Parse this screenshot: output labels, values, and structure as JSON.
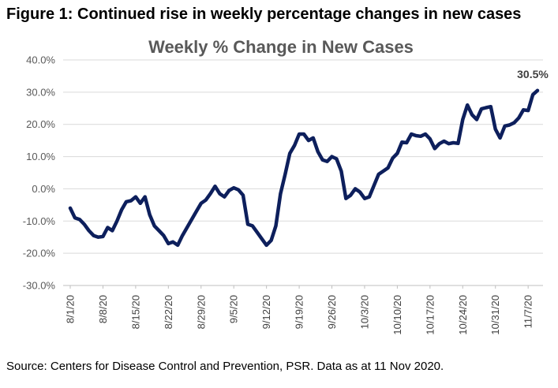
{
  "figure_title": "Figure 1: Continued rise in weekly percentage changes in new cases",
  "source": "Source: Centers for Disease Control and Prevention, PSR. Data as at 11 Nov 2020.",
  "colors": {
    "line": "#0d1f5c",
    "grid": "#d9d9d9",
    "axis": "#bfbfbf"
  },
  "chart_data": {
    "type": "line",
    "title": "Weekly % Change in New Cases",
    "xlabel": "",
    "ylabel": "",
    "ylim": [
      -30,
      40
    ],
    "grid": true,
    "y_ticks": [
      40,
      30,
      20,
      10,
      0,
      -10,
      -20,
      -30
    ],
    "y_tick_labels": [
      "40.0%",
      "30.0%",
      "20.0%",
      "10.0%",
      "0.0%",
      "-10.0%",
      "-20.0%",
      "-30.0%"
    ],
    "x_tick_labels": [
      "8/1/20",
      "8/8/20",
      "8/15/20",
      "8/22/20",
      "8/29/20",
      "9/5/20",
      "9/12/20",
      "9/19/20",
      "9/26/20",
      "10/3/20",
      "10/10/20",
      "10/17/20",
      "10/24/20",
      "10/31/20",
      "11/7/20"
    ],
    "last_value_label": "30.5%",
    "series": [
      {
        "values": [
          -6,
          -9,
          -9.5,
          -11,
          -13,
          -14.5,
          -15,
          -14.8,
          -12,
          -13,
          -10,
          -6.5,
          -4,
          -3.7,
          -2.5,
          -4.5,
          -2.5,
          -8,
          -11.5,
          -13,
          -14.5,
          -17,
          -16.5,
          -17.5,
          -14.5,
          -12,
          -9.5,
          -7,
          -4.5,
          -3.5,
          -1.5,
          0.8,
          -1.5,
          -2.5,
          -0.5,
          0.3,
          -0.3,
          -2,
          -11,
          -11.5,
          -13.5,
          -15.5,
          -17.5,
          -16,
          -11.5,
          -1.5,
          4.5,
          11,
          13.5,
          17,
          17,
          15,
          15.8,
          11.5,
          9,
          8.5,
          10,
          9.3,
          5.5,
          -3,
          -2,
          0,
          -1,
          -3,
          -2.5,
          1,
          4.5,
          5.5,
          6.5,
          9.5,
          11,
          14.5,
          14.3,
          17,
          16.5,
          16.3,
          17,
          15.5,
          12.5,
          14,
          14.8,
          14,
          14.3,
          14.1,
          21.5,
          26,
          23,
          21.5,
          24.8,
          25.2,
          25.5,
          18.5,
          15.8,
          19.5,
          19.8,
          20.5,
          22,
          24.5,
          24.3,
          29.2,
          30.5
        ]
      }
    ]
  }
}
